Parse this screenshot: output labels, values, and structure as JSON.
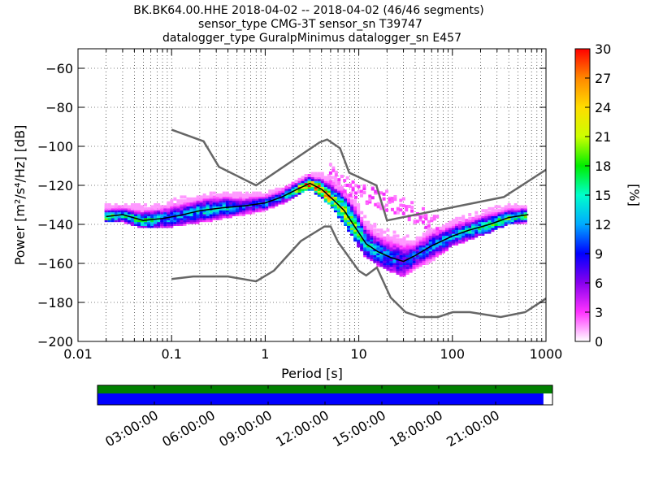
{
  "chart_data": {
    "type": "heatmap",
    "title_lines": [
      "BK.BK64.00.HHE   2018-04-02 -- 2018-04-02  (46/46 segments)",
      "sensor_type CMG-3T sensor_sn T39747",
      "datalogger_type GuralpMinimus datalogger_sn E457"
    ],
    "xlabel": "Period [s]",
    "ylabel": "Power [m²/s⁴/Hz] [dB]",
    "x_scale": "log",
    "xlim": [
      0.01,
      1000
    ],
    "ylim": [
      -200,
      -50
    ],
    "x_ticks": [
      0.01,
      0.1,
      1,
      10,
      100,
      1000
    ],
    "x_tick_labels": [
      "0.01",
      "0.1",
      "1",
      "10",
      "100",
      "1000"
    ],
    "y_ticks": [
      -200,
      -180,
      -160,
      -140,
      -120,
      -100,
      -80,
      -60
    ],
    "y_tick_labels": [
      "−200",
      "−180",
      "−160",
      "−140",
      "−120",
      "−100",
      "−80",
      "−60"
    ],
    "grid": true,
    "colorbar": {
      "label": "[%]",
      "range": [
        0,
        30
      ],
      "ticks": [
        0,
        3,
        6,
        9,
        12,
        15,
        18,
        21,
        24,
        27,
        30
      ],
      "tick_labels": [
        "0",
        "3",
        "6",
        "9",
        "12",
        "15",
        "18",
        "21",
        "24",
        "27",
        "30"
      ],
      "colors": [
        "#ffffff",
        "#ff33ff",
        "#8800ee",
        "#0000ff",
        "#00aaff",
        "#00ffcc",
        "#00ee00",
        "#ccff00",
        "#ffdd00",
        "#ff8800",
        "#ff0000"
      ]
    },
    "noise_model_high": {
      "period": [
        0.1,
        0.22,
        0.32,
        0.8,
        3.8,
        4.6,
        6.3,
        7.9,
        15.4,
        20,
        354,
        1000
      ],
      "db": [
        -91.5,
        -97.4,
        -110.5,
        -120,
        -98,
        -96.5,
        -101,
        -113.5,
        -120,
        -138,
        -126,
        -112
      ]
    },
    "noise_model_low": {
      "period": [
        0.1,
        0.17,
        0.4,
        0.8,
        1.24,
        2.4,
        4.3,
        5,
        6,
        10,
        12,
        15.6,
        21.9,
        31.6,
        45,
        70,
        101,
        154,
        328,
        600,
        1000
      ],
      "db": [
        -168,
        -166.7,
        -166.7,
        -169.2,
        -163.7,
        -148.6,
        -141.1,
        -141.1,
        -149,
        -163.8,
        -166.2,
        -162.1,
        -177.5,
        -185,
        -187.5,
        -187.5,
        -185,
        -185,
        -187.5,
        -185,
        -178
      ]
    },
    "mean_curve": {
      "period": [
        0.02,
        0.03,
        0.05,
        0.08,
        0.12,
        0.2,
        0.35,
        0.6,
        1,
        1.5,
        2.2,
        3,
        4,
        5.5,
        7,
        9,
        12,
        16,
        22,
        30,
        40,
        60,
        100,
        150,
        250,
        400,
        650
      ],
      "db": [
        -136,
        -135,
        -138,
        -137,
        -135.5,
        -133,
        -131.5,
        -130.5,
        -129,
        -126,
        -122,
        -119,
        -122,
        -128,
        -133,
        -141,
        -150,
        -154,
        -157,
        -159,
        -156,
        -151,
        -146,
        -143,
        -140,
        -136.5,
        -135
      ]
    },
    "psd_band": {
      "period": [
        0.02,
        0.03,
        0.05,
        0.08,
        0.12,
        0.2,
        0.35,
        0.6,
        1,
        1.5,
        2.2,
        3,
        4,
        5.5,
        7,
        9,
        12,
        16,
        22,
        30,
        40,
        60,
        100,
        150,
        250,
        400,
        650
      ],
      "low_db": [
        -138,
        -138,
        -141,
        -141,
        -139.5,
        -138,
        -136,
        -134,
        -132,
        -128.5,
        -124,
        -121,
        -125,
        -132,
        -139,
        -147,
        -156,
        -160,
        -163,
        -166,
        -162,
        -158,
        -150,
        -147,
        -143,
        -139,
        -138
      ],
      "high_db": [
        -130,
        -130,
        -131,
        -129,
        -127,
        -125,
        -124,
        -124,
        -124,
        -122.5,
        -118,
        -115,
        -114,
        -116,
        -120,
        -126,
        -138,
        -142,
        -144,
        -146,
        -148,
        -143,
        -138,
        -136,
        -132,
        -130,
        -130
      ],
      "peak_pct": [
        18,
        14,
        16,
        12,
        11,
        13,
        14,
        9,
        12,
        10,
        22,
        28,
        26,
        20,
        20,
        18,
        14,
        12,
        10,
        9,
        10,
        11,
        12,
        14,
        16,
        17,
        17
      ]
    },
    "upper_scatter_branch": {
      "period": [
        5,
        7,
        10,
        14,
        20,
        30,
        45,
        70
      ],
      "db": [
        -114,
        -120,
        -124,
        -126,
        -128,
        -131,
        -136,
        -140
      ]
    },
    "timeline": {
      "tick_labels": [
        "03:00:00",
        "06:00:00",
        "09:00:00",
        "12:00:00",
        "15:00:00",
        "18:00:00",
        "21:00:00"
      ],
      "tick_hours": [
        3,
        6,
        9,
        12,
        15,
        18,
        21
      ],
      "range_hours": [
        0,
        24
      ],
      "data_available_fraction": 0.98,
      "gap_color": "#008000",
      "data_color": "#0000ff"
    }
  }
}
